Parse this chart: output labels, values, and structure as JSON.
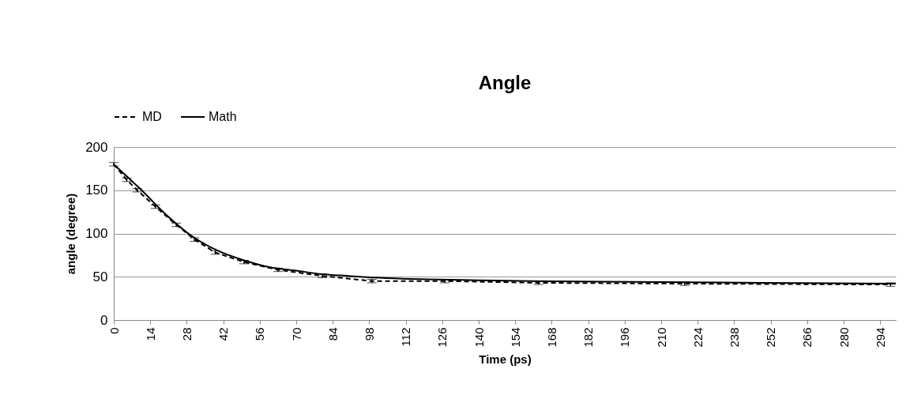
{
  "chart_data": {
    "type": "line",
    "title": "Angle",
    "xlabel": "Time (ps)",
    "ylabel": "angle (degree)",
    "xlim": [
      0,
      300
    ],
    "xticks": [
      0,
      14,
      28,
      42,
      56,
      70,
      84,
      98,
      112,
      126,
      140,
      154,
      168,
      182,
      196,
      210,
      224,
      238,
      252,
      266,
      280,
      294
    ],
    "ylim": [
      0,
      200
    ],
    "yticks": [
      0,
      50,
      100,
      150,
      200
    ],
    "grid": "y",
    "legend": "top",
    "series": [
      {
        "name": "MD",
        "color": "#000000",
        "line_style": "dashed",
        "x": [
          0,
          5,
          9,
          16,
          24,
          31,
          39,
          50,
          63,
          80,
          99,
          127,
          163,
          219,
          298
        ],
        "values": [
          180,
          162,
          150,
          131,
          110,
          93,
          78,
          67,
          58,
          51,
          45,
          45,
          43,
          42,
          41
        ],
        "errors": [
          2,
          2,
          2,
          2,
          2,
          2,
          2,
          2,
          2,
          2,
          2,
          2,
          2,
          2,
          2
        ]
      },
      {
        "name": "Math",
        "color": "#000000",
        "line_style": "solid",
        "x": [
          0,
          10,
          20,
          30,
          40,
          50,
          60,
          70,
          80,
          90,
          100,
          120,
          140,
          160,
          200,
          250,
          300
        ],
        "values": [
          180,
          152,
          122,
          97,
          80,
          69,
          61,
          57,
          53,
          51,
          49,
          47,
          46,
          45,
          44,
          43,
          42
        ]
      }
    ]
  }
}
